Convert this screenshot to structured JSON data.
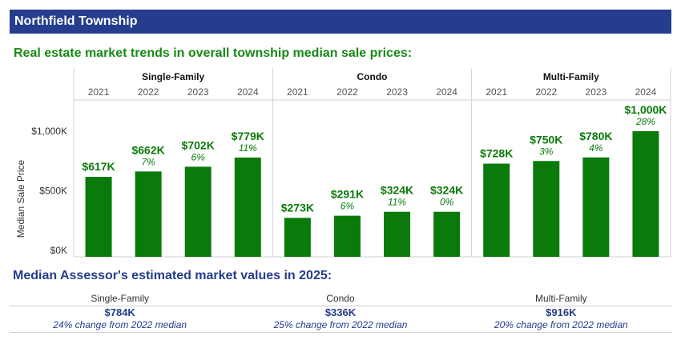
{
  "header": {
    "title": "Northfield Township"
  },
  "chart_data": {
    "type": "bar",
    "title": "Real estate market trends in overall township median sale prices:",
    "ylabel": "Median Sale Price",
    "ylim": [
      0,
      1100
    ],
    "yticks": [
      {
        "value": 0,
        "label": "$0K"
      },
      {
        "value": 500,
        "label": "$500K"
      },
      {
        "value": 1000,
        "label": "$1,000K"
      }
    ],
    "colors": {
      "bar": "#0a7a0a",
      "label": "#0a7a0a",
      "grid": "#d0d0d0",
      "year": "#555555"
    },
    "groups": [
      {
        "name": "Single-Family",
        "years": [
          "2021",
          "2022",
          "2023",
          "2024"
        ],
        "values": [
          617,
          662,
          702,
          779
        ],
        "value_labels": [
          "$617K",
          "$662K",
          "$702K",
          "$779K"
        ],
        "change_labels": [
          "",
          "7%",
          "6%",
          "11%"
        ]
      },
      {
        "name": "Condo",
        "years": [
          "2021",
          "2022",
          "2023",
          "2024"
        ],
        "values": [
          273,
          291,
          324,
          324
        ],
        "value_labels": [
          "$273K",
          "$291K",
          "$324K",
          "$324K"
        ],
        "change_labels": [
          "",
          "6%",
          "11%",
          "0%"
        ]
      },
      {
        "name": "Multi-Family",
        "years": [
          "2021",
          "2022",
          "2023",
          "2024"
        ],
        "values": [
          728,
          750,
          780,
          1000
        ],
        "value_labels": [
          "$728K",
          "$750K",
          "$780K",
          "$1,000K"
        ],
        "change_labels": [
          "",
          "3%",
          "4%",
          "28%"
        ]
      }
    ]
  },
  "assessment": {
    "title": "Median Assessor's estimated market values in 2025:",
    "items": [
      {
        "category": "Single-Family",
        "value": "$784K",
        "note": "24% change from 2022 median"
      },
      {
        "category": "Condo",
        "value": "$336K",
        "note": "25% change from 2022 median"
      },
      {
        "category": "Multi-Family",
        "value": "$916K",
        "note": "20% change from 2022 median"
      }
    ]
  }
}
